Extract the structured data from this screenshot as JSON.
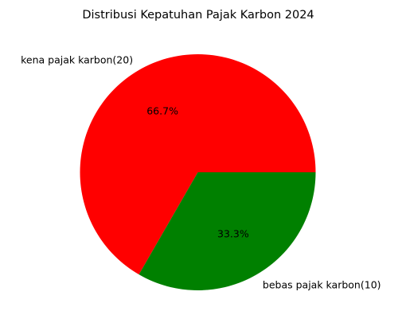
{
  "chart_data": {
    "type": "pie",
    "title": "Distribusi Kepatuhan Pajak Karbon 2024",
    "slices": [
      {
        "label": "kena pajak karbon(20)",
        "value": 20,
        "percent_label": "66.7%",
        "color": "#ff0000"
      },
      {
        "label": "bebas pajak karbon(10)",
        "value": 10,
        "percent_label": "33.3%",
        "color": "#008000"
      }
    ],
    "start_angle": "3 o'clock",
    "direction": "counter-clockwise"
  }
}
